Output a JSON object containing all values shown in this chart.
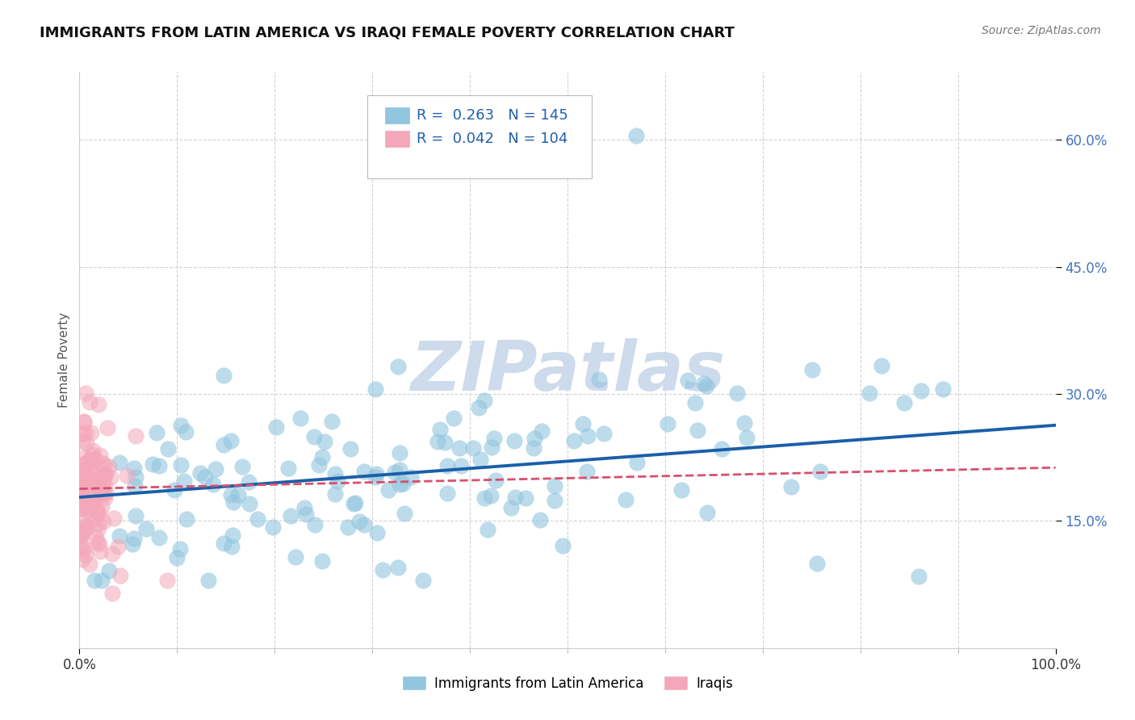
{
  "title": "IMMIGRANTS FROM LATIN AMERICA VS IRAQI FEMALE POVERTY CORRELATION CHART",
  "source": "Source: ZipAtlas.com",
  "ylabel": "Female Poverty",
  "xlim": [
    0,
    1.0
  ],
  "ylim": [
    0.0,
    0.68
  ],
  "ytick_positions": [
    0.15,
    0.3,
    0.45,
    0.6
  ],
  "ytick_labels": [
    "15.0%",
    "30.0%",
    "45.0%",
    "60.0%"
  ],
  "blue_R": 0.263,
  "blue_N": 145,
  "pink_R": 0.042,
  "pink_N": 104,
  "blue_color": "#92c5de",
  "blue_line_color": "#1a5fa8",
  "pink_color": "#f4a7b9",
  "pink_line_color": "#d94f6e",
  "grid_color": "#c8c8c8",
  "watermark": "ZIPatlas",
  "watermark_color": "#c8d8ea",
  "blue_seed": 777,
  "pink_seed": 888
}
